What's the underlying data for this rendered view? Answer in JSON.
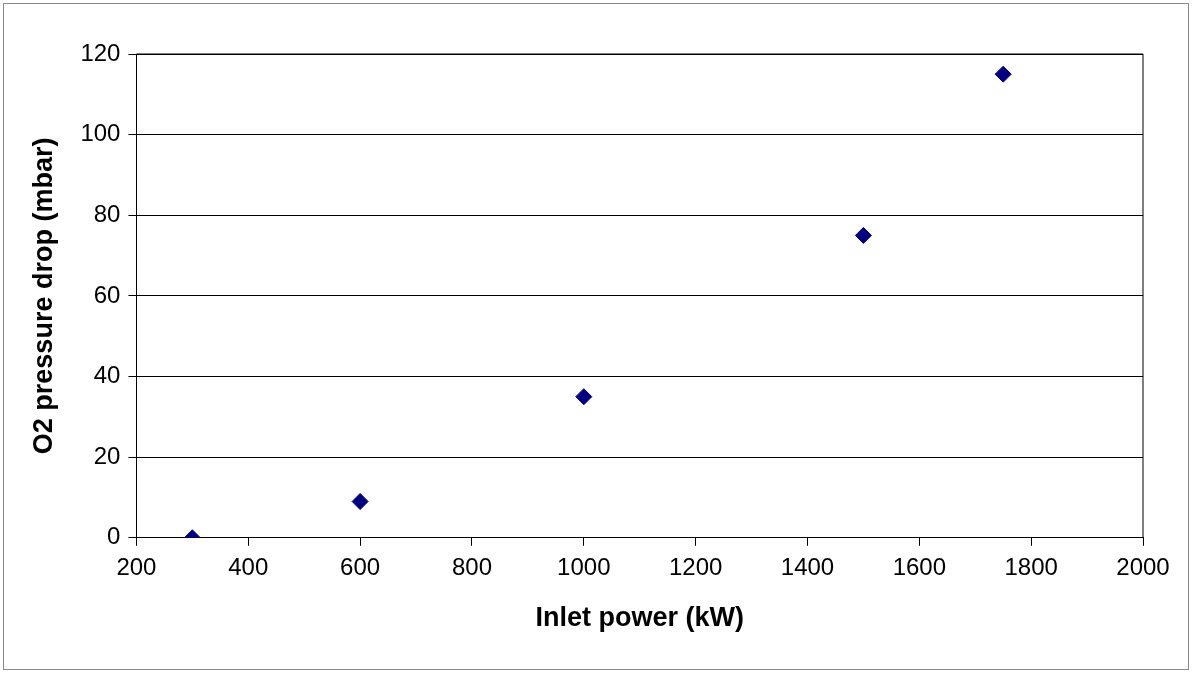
{
  "chart_data": {
    "type": "scatter",
    "xlabel": "Inlet power (kW)",
    "ylabel": "O2 pressure drop (mbar)",
    "x": [
      300,
      600,
      1000,
      1500,
      1750
    ],
    "series": [
      {
        "color": "#000080",
        "values": [
          0,
          9,
          35,
          75,
          115
        ]
      }
    ],
    "xlim": [
      200,
      2000
    ],
    "xticks": [
      200,
      400,
      600,
      800,
      1000,
      1200,
      1400,
      1600,
      1800,
      2000
    ],
    "ylim": [
      0,
      120
    ],
    "yticks": [
      0,
      20,
      40,
      60,
      80,
      100,
      120
    ],
    "grid": "y",
    "legend": false,
    "marker": "diamond"
  }
}
